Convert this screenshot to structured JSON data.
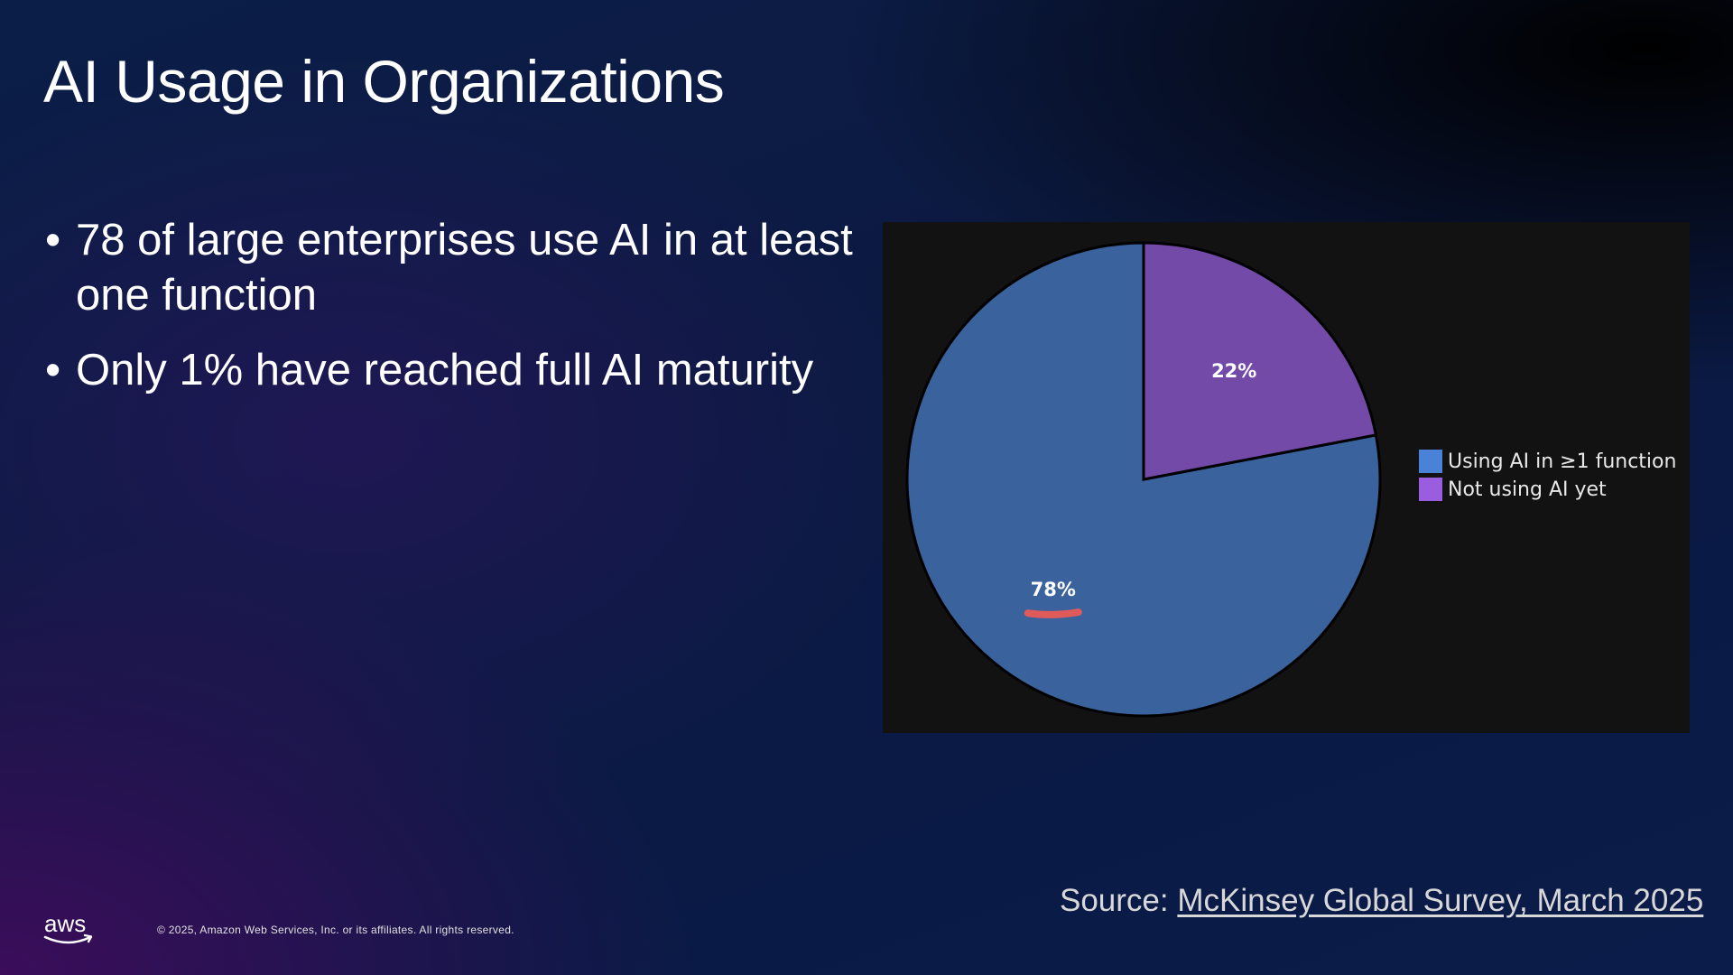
{
  "slide": {
    "title": "AI Usage in Organizations",
    "bullets": [
      "78 of large enterprises use AI in at least one function",
      "Only 1% have reached full AI maturity"
    ],
    "bullet_glyph": "•"
  },
  "chart_data": {
    "type": "pie",
    "title": "",
    "labels": [
      "Using AI in ≥1 function",
      "Not using AI yet"
    ],
    "values": [
      78,
      22
    ],
    "value_labels": [
      "78%",
      "22%"
    ],
    "slice_colors": [
      "#3a629c",
      "#744aa9"
    ],
    "legend_colors": [
      "#4a82d8",
      "#9b5de0"
    ],
    "legend_position": "right",
    "start_angle_deg": 90,
    "direction": "counterclockwise",
    "background": "#121212",
    "annotation_color": "#e05a5a"
  },
  "footer": {
    "source_prefix": "Source: ",
    "source_link": "McKinsey Global Survey, March 2025",
    "logo_text": "aws",
    "copyright": "© 2025, Amazon Web Services, Inc. or its affiliates. All rights reserved."
  }
}
